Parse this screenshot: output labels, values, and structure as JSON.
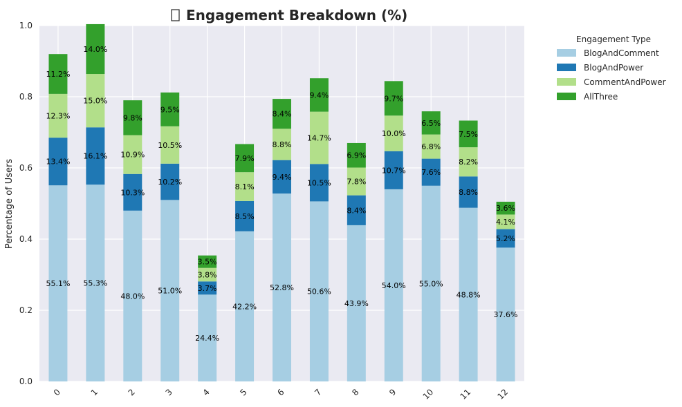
{
  "chart_data": {
    "type": "bar",
    "stacked": true,
    "title": "Engagement Breakdown (%)",
    "title_icon": "chart-icon-missing-glyph",
    "xlabel": "",
    "ylabel": "Percentage of Users",
    "ylim": [
      0,
      1.0
    ],
    "yticks": [
      "0.0",
      "0.2",
      "0.4",
      "0.6",
      "0.8",
      "1.0"
    ],
    "ytick_values": [
      0,
      0.2,
      0.4,
      0.6,
      0.8,
      1.0
    ],
    "grid": true,
    "categories": [
      "0",
      "1",
      "2",
      "3",
      "4",
      "5",
      "6",
      "7",
      "8",
      "9",
      "10",
      "11",
      "12"
    ],
    "legend": {
      "title": "Engagement Type",
      "placement": "outside-right"
    },
    "series": [
      {
        "name": "BlogAndComment",
        "color": "#a6cee3",
        "values": [
          0.551,
          0.553,
          0.48,
          0.51,
          0.244,
          0.422,
          0.528,
          0.506,
          0.439,
          0.54,
          0.55,
          0.488,
          0.376
        ],
        "labels": [
          "55.1%",
          "55.3%",
          "48.0%",
          "51.0%",
          "24.4%",
          "42.2%",
          "52.8%",
          "50.6%",
          "43.9%",
          "54.0%",
          "55.0%",
          "48.8%",
          "37.6%"
        ]
      },
      {
        "name": "BlogAndPower",
        "color": "#1f78b4",
        "values": [
          0.134,
          0.161,
          0.103,
          0.102,
          0.037,
          0.085,
          0.094,
          0.105,
          0.084,
          0.107,
          0.076,
          0.088,
          0.052
        ],
        "labels": [
          "13.4%",
          "16.1%",
          "10.3%",
          "10.2%",
          "3.7%",
          "8.5%",
          "9.4%",
          "10.5%",
          "8.4%",
          "10.7%",
          "7.6%",
          "8.8%",
          "5.2%"
        ]
      },
      {
        "name": "CommentAndPower",
        "color": "#b2df8a",
        "values": [
          0.123,
          0.15,
          0.109,
          0.105,
          0.038,
          0.081,
          0.088,
          0.147,
          0.078,
          0.1,
          0.068,
          0.082,
          0.041
        ],
        "labels": [
          "12.3%",
          "15.0%",
          "10.9%",
          "10.5%",
          "3.8%",
          "8.1%",
          "8.8%",
          "14.7%",
          "7.8%",
          "10.0%",
          "6.8%",
          "8.2%",
          "4.1%"
        ]
      },
      {
        "name": "AllThree",
        "color": "#33a02c",
        "values": [
          0.112,
          0.14,
          0.098,
          0.095,
          0.035,
          0.079,
          0.084,
          0.094,
          0.069,
          0.097,
          0.065,
          0.075,
          0.036
        ],
        "labels": [
          "11.2%",
          "14.0%",
          "9.8%",
          "9.5%",
          "3.5%",
          "7.9%",
          "8.4%",
          "9.4%",
          "6.9%",
          "9.7%",
          "6.5%",
          "7.5%",
          "3.6%"
        ]
      }
    ]
  }
}
